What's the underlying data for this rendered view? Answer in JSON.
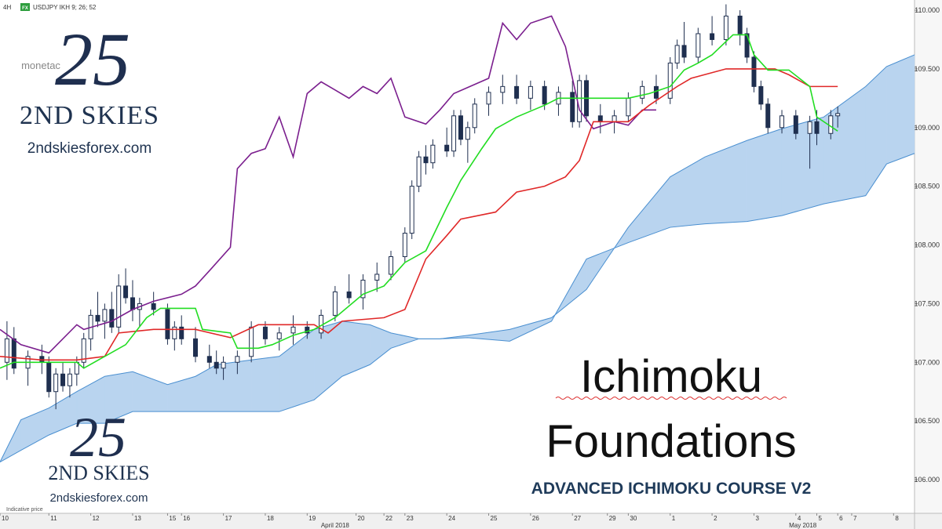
{
  "toolbar": {
    "timeframe": "4H",
    "badge": "FX",
    "symbol": "USDJPY IKH 9; 26; 52",
    "note": "Indicative price"
  },
  "overlay": {
    "logo_mark": "25",
    "logo_small": "monetac",
    "brand": "2ND SKIES",
    "site": "2ndskiesforex.com",
    "brand_2": "2ND SKIES",
    "site_2": "2ndskiesforex.com",
    "logo_mark_2": "25",
    "title_1": "Ichimoku",
    "title_2": "Foundations",
    "subtitle": "ADVANCED ICHIMOKU COURSE V2"
  },
  "chart_data": {
    "type": "candlestick",
    "xlim": [
      0,
      131
    ],
    "ylim": [
      105.713,
      110.087
    ],
    "grid": false,
    "up_color": "#ffffff",
    "down_color": "#1f2f4f",
    "xticks": [
      {
        "value": 0,
        "label": "10"
      },
      {
        "value": 7,
        "label": "11"
      },
      {
        "value": 13,
        "label": "12"
      },
      {
        "value": 19,
        "label": "13"
      },
      {
        "value": 24,
        "label": "15"
      },
      {
        "value": 26,
        "label": "16"
      },
      {
        "value": 32,
        "label": "17"
      },
      {
        "value": 38,
        "label": "18"
      },
      {
        "value": 44,
        "label": "19"
      },
      {
        "value": 51,
        "label": "20"
      },
      {
        "value": 55,
        "label": "22"
      },
      {
        "value": 58,
        "label": "23"
      },
      {
        "value": 64,
        "label": "24"
      },
      {
        "value": 70,
        "label": "25"
      },
      {
        "value": 76,
        "label": "26"
      },
      {
        "value": 82,
        "label": "27"
      },
      {
        "value": 87,
        "label": "29"
      },
      {
        "value": 90,
        "label": "30"
      },
      {
        "value": 96,
        "label": "1"
      },
      {
        "value": 102,
        "label": "2"
      },
      {
        "value": 108,
        "label": "3"
      },
      {
        "value": 114,
        "label": "4"
      },
      {
        "value": 117,
        "label": "5"
      },
      {
        "value": 120,
        "label": "6"
      },
      {
        "value": 122,
        "label": "7"
      },
      {
        "value": 128,
        "label": "8"
      }
    ],
    "month_ticks": [
      {
        "value": 48,
        "label": "April 2018"
      },
      {
        "value": 115,
        "label": "May 2018"
      }
    ],
    "yticks": [
      {
        "value": 106,
        "label": "106.000"
      },
      {
        "value": 106.5,
        "label": "106.500"
      },
      {
        "value": 107,
        "label": "107.000"
      },
      {
        "value": 107.5,
        "label": "107.500"
      },
      {
        "value": 108,
        "label": "108.000"
      },
      {
        "value": 108.5,
        "label": "108.500"
      },
      {
        "value": 109,
        "label": "109.000"
      },
      {
        "value": 109.5,
        "label": "109.500"
      },
      {
        "value": 110,
        "label": "110.000"
      }
    ],
    "x": [
      1,
      2,
      4,
      6,
      7,
      8,
      9,
      10,
      11,
      12,
      13,
      14,
      15,
      16,
      17,
      18,
      19,
      20,
      22,
      24,
      25,
      26,
      28,
      30,
      31,
      32,
      34,
      36,
      38,
      40,
      42,
      44,
      46,
      48,
      50,
      52,
      54,
      56,
      58,
      59,
      60,
      61,
      62,
      64,
      65,
      66,
      67,
      68,
      70,
      72,
      74,
      76,
      78,
      80,
      82,
      83,
      84,
      86,
      88,
      90,
      92,
      94,
      96,
      97,
      98,
      100,
      102,
      104,
      106,
      107,
      108,
      109,
      110,
      112,
      114,
      116,
      117,
      119,
      120
    ],
    "open": [
      107.0,
      107.2,
      106.95,
      107.05,
      107.0,
      106.75,
      106.9,
      106.8,
      106.9,
      107.0,
      107.2,
      107.4,
      107.35,
      107.45,
      107.3,
      107.65,
      107.55,
      107.45,
      107.5,
      107.45,
      107.2,
      107.3,
      107.2,
      107.05,
      107.0,
      106.95,
      107.0,
      107.05,
      107.3,
      107.2,
      107.25,
      107.3,
      107.25,
      107.4,
      107.6,
      107.55,
      107.7,
      107.75,
      107.9,
      108.1,
      108.5,
      108.75,
      108.7,
      108.85,
      108.8,
      109.1,
      108.9,
      109.0,
      109.2,
      109.3,
      109.35,
      109.25,
      109.35,
      109.2,
      109.3,
      109.05,
      109.4,
      109.1,
      109.05,
      109.1,
      109.25,
      109.35,
      109.25,
      109.55,
      109.7,
      109.6,
      109.8,
      109.75,
      109.95,
      109.8,
      109.6,
      109.35,
      109.2,
      109.0,
      109.1,
      108.95,
      109.05,
      108.95,
      109.1
    ],
    "high": [
      107.35,
      107.3,
      107.1,
      107.15,
      107.05,
      106.95,
      107.0,
      106.95,
      107.05,
      107.25,
      107.45,
      107.6,
      107.5,
      107.6,
      107.75,
      107.8,
      107.7,
      107.55,
      107.6,
      107.5,
      107.35,
      107.4,
      107.3,
      107.15,
      107.1,
      107.05,
      107.1,
      107.35,
      107.35,
      107.3,
      107.4,
      107.35,
      107.45,
      107.65,
      107.75,
      107.75,
      107.85,
      107.95,
      108.15,
      108.55,
      108.8,
      108.85,
      108.9,
      109.0,
      109.15,
      109.15,
      109.05,
      109.25,
      109.35,
      109.45,
      109.45,
      109.4,
      109.4,
      109.35,
      109.4,
      109.45,
      109.45,
      109.2,
      109.15,
      109.3,
      109.4,
      109.45,
      109.6,
      109.75,
      109.9,
      109.85,
      109.95,
      110.05,
      110.0,
      109.85,
      109.65,
      109.4,
      109.25,
      109.15,
      109.15,
      109.1,
      109.15,
      109.15,
      109.18
    ],
    "low": [
      106.85,
      106.9,
      106.8,
      106.9,
      106.7,
      106.6,
      106.75,
      106.7,
      106.8,
      106.95,
      107.1,
      107.3,
      107.2,
      107.25,
      107.25,
      107.5,
      107.35,
      107.3,
      107.4,
      107.15,
      107.1,
      107.15,
      107.0,
      106.95,
      106.9,
      106.85,
      106.9,
      107.0,
      107.15,
      107.1,
      107.15,
      107.2,
      107.2,
      107.35,
      107.5,
      107.45,
      107.6,
      107.7,
      107.85,
      108.05,
      108.45,
      108.6,
      108.65,
      108.75,
      108.75,
      108.85,
      108.7,
      108.95,
      109.1,
      109.2,
      109.2,
      109.15,
      109.15,
      109.1,
      109.0,
      109.0,
      109.05,
      108.95,
      108.95,
      109.05,
      109.2,
      109.2,
      109.2,
      109.5,
      109.55,
      109.55,
      109.7,
      109.7,
      109.7,
      109.55,
      109.3,
      109.15,
      108.95,
      108.95,
      108.9,
      108.65,
      108.85,
      108.9,
      109.0
    ],
    "close": [
      107.2,
      106.95,
      107.05,
      107.0,
      106.75,
      106.9,
      106.8,
      106.9,
      107.0,
      107.2,
      107.4,
      107.35,
      107.45,
      107.3,
      107.65,
      107.55,
      107.45,
      107.5,
      107.45,
      107.2,
      107.3,
      107.2,
      107.05,
      107.0,
      106.95,
      107.0,
      107.05,
      107.3,
      107.2,
      107.25,
      107.3,
      107.25,
      107.4,
      107.6,
      107.55,
      107.7,
      107.75,
      107.9,
      108.1,
      108.5,
      108.75,
      108.7,
      108.85,
      108.8,
      109.1,
      108.9,
      109.0,
      109.2,
      109.3,
      109.35,
      109.25,
      109.35,
      109.2,
      109.3,
      109.05,
      109.4,
      109.1,
      109.05,
      109.1,
      109.25,
      109.35,
      109.25,
      109.55,
      109.7,
      109.6,
      109.8,
      109.75,
      109.95,
      109.8,
      109.6,
      109.35,
      109.2,
      109.0,
      109.1,
      108.95,
      109.05,
      108.95,
      109.1,
      109.12
    ],
    "cloud": {
      "color": "#b9d4ef",
      "edge_color": "#4a8fd0",
      "x": [
        0,
        3,
        7,
        11,
        15,
        19,
        24,
        28,
        31,
        36,
        40,
        45,
        49,
        53,
        56,
        60,
        63,
        67,
        73,
        79,
        84,
        90,
        96,
        101,
        107,
        112,
        118,
        124,
        127,
        131
      ],
      "span_a": [
        106.15,
        106.51,
        106.61,
        106.75,
        106.88,
        106.92,
        106.81,
        106.88,
        106.98,
        107.02,
        107.05,
        107.28,
        107.35,
        107.32,
        107.25,
        107.2,
        107.2,
        107.23,
        107.28,
        107.38,
        107.62,
        108.15,
        108.58,
        108.75,
        108.89,
        108.99,
        109.09,
        109.35,
        109.52,
        109.62
      ],
      "span_b": [
        106.15,
        106.25,
        106.38,
        106.48,
        106.48,
        106.58,
        106.58,
        106.58,
        106.58,
        106.58,
        106.58,
        106.68,
        106.88,
        106.98,
        107.12,
        107.2,
        107.2,
        107.21,
        107.18,
        107.35,
        107.88,
        108.02,
        108.15,
        108.18,
        108.2,
        108.25,
        108.35,
        108.42,
        108.69,
        108.78
      ]
    },
    "series": [
      {
        "color": "#7b1f8e",
        "x": [
          0,
          3,
          7,
          11,
          12,
          16,
          19,
          22,
          26,
          28,
          30,
          33,
          34,
          36,
          38,
          40,
          42,
          44,
          46,
          48,
          50,
          52,
          54,
          56,
          58,
          61,
          63,
          65,
          70,
          72,
          74,
          76,
          79,
          81,
          83,
          85,
          88,
          90,
          92,
          94
        ],
        "values": [
          107.28,
          107.15,
          107.08,
          107.32,
          107.28,
          107.35,
          107.45,
          107.52,
          107.58,
          107.65,
          107.78,
          107.98,
          108.65,
          108.78,
          108.82,
          109.09,
          108.75,
          109.29,
          109.39,
          109.32,
          109.25,
          109.35,
          109.29,
          109.42,
          109.09,
          109.03,
          109.15,
          109.29,
          109.42,
          109.89,
          109.75,
          109.89,
          109.95,
          109.69,
          109.15,
          108.99,
          109.05,
          109.02,
          109.15,
          109.15
        ]
      },
      {
        "color": "#e02828",
        "x": [
          0,
          6,
          11,
          15,
          17,
          22,
          28,
          33,
          37,
          45,
          47,
          49,
          55,
          58,
          61,
          64,
          66,
          71,
          74,
          78,
          81,
          83,
          85,
          90,
          93,
          97,
          99,
          104,
          111,
          113,
          116,
          120
        ],
        "values": [
          107.05,
          107.02,
          107.02,
          107.05,
          107.25,
          107.28,
          107.28,
          107.21,
          107.32,
          107.32,
          107.25,
          107.35,
          107.38,
          107.45,
          107.88,
          108.08,
          108.22,
          108.28,
          108.45,
          108.5,
          108.58,
          108.72,
          109.05,
          109.05,
          109.19,
          109.35,
          109.42,
          109.5,
          109.5,
          109.45,
          109.35,
          109.35
        ]
      },
      {
        "color": "#22dd22",
        "x": [
          0,
          2,
          6,
          11,
          12,
          15,
          18,
          21,
          23,
          26,
          28,
          29,
          33,
          34,
          37,
          39,
          42,
          45,
          48,
          52,
          55,
          58,
          61,
          64,
          66,
          69,
          71,
          74,
          78,
          80,
          82,
          85,
          90,
          93,
          96,
          98,
          100,
          102,
          105,
          107,
          108,
          110,
          113,
          116,
          117,
          120
        ],
        "values": [
          106.95,
          107.0,
          107.0,
          107.0,
          106.95,
          107.05,
          107.15,
          107.38,
          107.46,
          107.46,
          107.46,
          107.28,
          107.25,
          107.12,
          107.12,
          107.15,
          107.23,
          107.28,
          107.38,
          107.58,
          107.65,
          107.85,
          107.95,
          108.32,
          108.55,
          108.82,
          108.99,
          109.09,
          109.19,
          109.25,
          109.25,
          109.25,
          109.25,
          109.29,
          109.35,
          109.49,
          109.55,
          109.62,
          109.79,
          109.79,
          109.62,
          109.49,
          109.49,
          109.35,
          109.09,
          108.97
        ]
      }
    ]
  }
}
